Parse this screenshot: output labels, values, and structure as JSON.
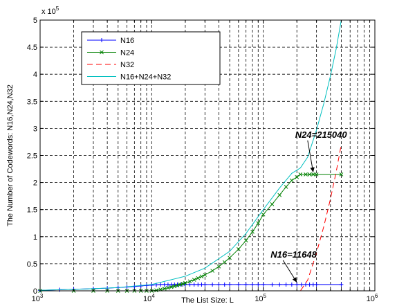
{
  "chart_data": {
    "type": "line",
    "title": "",
    "xlabel": "The List Size: L",
    "ylabel": "The Number of Codewords: N16,N24,N32",
    "xscale": "log",
    "xlim": [
      1000,
      1000000
    ],
    "ylim": [
      0,
      500000
    ],
    "y_exponent_label": "x 10",
    "y_exponent_power": "5",
    "x_ticks": [
      {
        "value": 1000,
        "base": "10",
        "exp": "3"
      },
      {
        "value": 10000,
        "base": "10",
        "exp": "4"
      },
      {
        "value": 100000,
        "base": "10",
        "exp": "5"
      },
      {
        "value": 1000000,
        "base": "10",
        "exp": "6"
      }
    ],
    "y_ticks": [
      {
        "value": 0,
        "label": "0"
      },
      {
        "value": 50000,
        "label": "0.5"
      },
      {
        "value": 100000,
        "label": "1"
      },
      {
        "value": 150000,
        "label": "1.5"
      },
      {
        "value": 200000,
        "label": "2"
      },
      {
        "value": 250000,
        "label": "2.5"
      },
      {
        "value": 300000,
        "label": "3"
      },
      {
        "value": 350000,
        "label": "3.5"
      },
      {
        "value": 400000,
        "label": "4"
      },
      {
        "value": 450000,
        "label": "4.5"
      },
      {
        "value": 500000,
        "label": "5"
      }
    ],
    "grid": true,
    "legend_position": "top-left",
    "series": [
      {
        "name": "N16",
        "color": "#0000ff",
        "dash": "solid",
        "marker": "plus",
        "x": [
          1000,
          1500,
          2000,
          3000,
          4000,
          5000,
          6000,
          7000,
          8000,
          9000,
          10000,
          11000,
          12000,
          13000,
          14000,
          15000,
          16000,
          17000,
          18000,
          19000,
          20000,
          22000,
          24000,
          26000,
          28000,
          30000,
          35000,
          40000,
          45000,
          50000,
          60000,
          70000,
          80000,
          90000,
          100000,
          120000,
          140000,
          160000,
          180000,
          200000,
          220000,
          240000,
          260000,
          280000,
          300000,
          500000
        ],
        "y": [
          1000,
          2000,
          3000,
          4000,
          5000,
          6000,
          7000,
          8000,
          9000,
          10000,
          10500,
          11000,
          11648,
          11648,
          11648,
          11648,
          11648,
          11648,
          11648,
          11648,
          11648,
          11648,
          11648,
          11648,
          11648,
          11648,
          11648,
          11648,
          11648,
          11648,
          11648,
          11648,
          11648,
          11648,
          11648,
          11648,
          11648,
          11648,
          11648,
          11648,
          11648,
          11648,
          11648,
          11648,
          11648,
          11648
        ]
      },
      {
        "name": "N24",
        "color": "#008000",
        "dash": "solid",
        "marker": "x",
        "x": [
          1000,
          2000,
          3000,
          4000,
          5000,
          6000,
          7000,
          8000,
          9000,
          10000,
          11000,
          12000,
          13000,
          14000,
          15000,
          16000,
          17000,
          18000,
          19000,
          20000,
          22000,
          24000,
          26000,
          28000,
          30000,
          35000,
          40000,
          45000,
          50000,
          60000,
          70000,
          80000,
          90000,
          100000,
          120000,
          140000,
          160000,
          180000,
          200000,
          215000,
          240000,
          260000,
          280000,
          300000,
          500000
        ],
        "y": [
          0,
          0,
          0,
          0,
          0,
          0,
          0,
          0,
          0,
          0,
          1000,
          2500,
          4000,
          5500,
          7000,
          8500,
          10000,
          11500,
          13000,
          14500,
          17500,
          20500,
          23500,
          26500,
          29500,
          37000,
          45000,
          53000,
          61000,
          77000,
          93000,
          109000,
          125000,
          141000,
          160000,
          177000,
          192000,
          204000,
          210000,
          215040,
          215040,
          215040,
          215040,
          215040,
          215040
        ]
      },
      {
        "name": "N32",
        "color": "#ff0000",
        "dash": "dashed",
        "marker": "none",
        "x": [
          1000,
          10000,
          100000,
          215000,
          250000,
          300000,
          350000,
          400000,
          450000,
          500000
        ],
        "y": [
          0,
          0,
          0,
          0,
          20000,
          70000,
          120000,
          170000,
          220000,
          270000
        ]
      },
      {
        "name": "N16+N24+N32",
        "color": "#00bfbf",
        "dash": "solid",
        "marker": "none",
        "x": [
          1000,
          2000,
          3000,
          5000,
          10000,
          20000,
          30000,
          50000,
          70000,
          100000,
          140000,
          180000,
          215000,
          250000,
          300000,
          350000,
          400000,
          450000,
          500000
        ],
        "y": [
          1000,
          3000,
          4000,
          6000,
          11648,
          27000,
          42000,
          73000,
          106000,
          150000,
          190000,
          217000,
          227000,
          247000,
          297000,
          347000,
          397000,
          447000,
          500000
        ]
      }
    ],
    "annotations": [
      {
        "text": "N24=215040",
        "x": 280000,
        "y": 215040
      },
      {
        "text": "N16=11648",
        "x": 200000,
        "y": 11648
      }
    ]
  }
}
